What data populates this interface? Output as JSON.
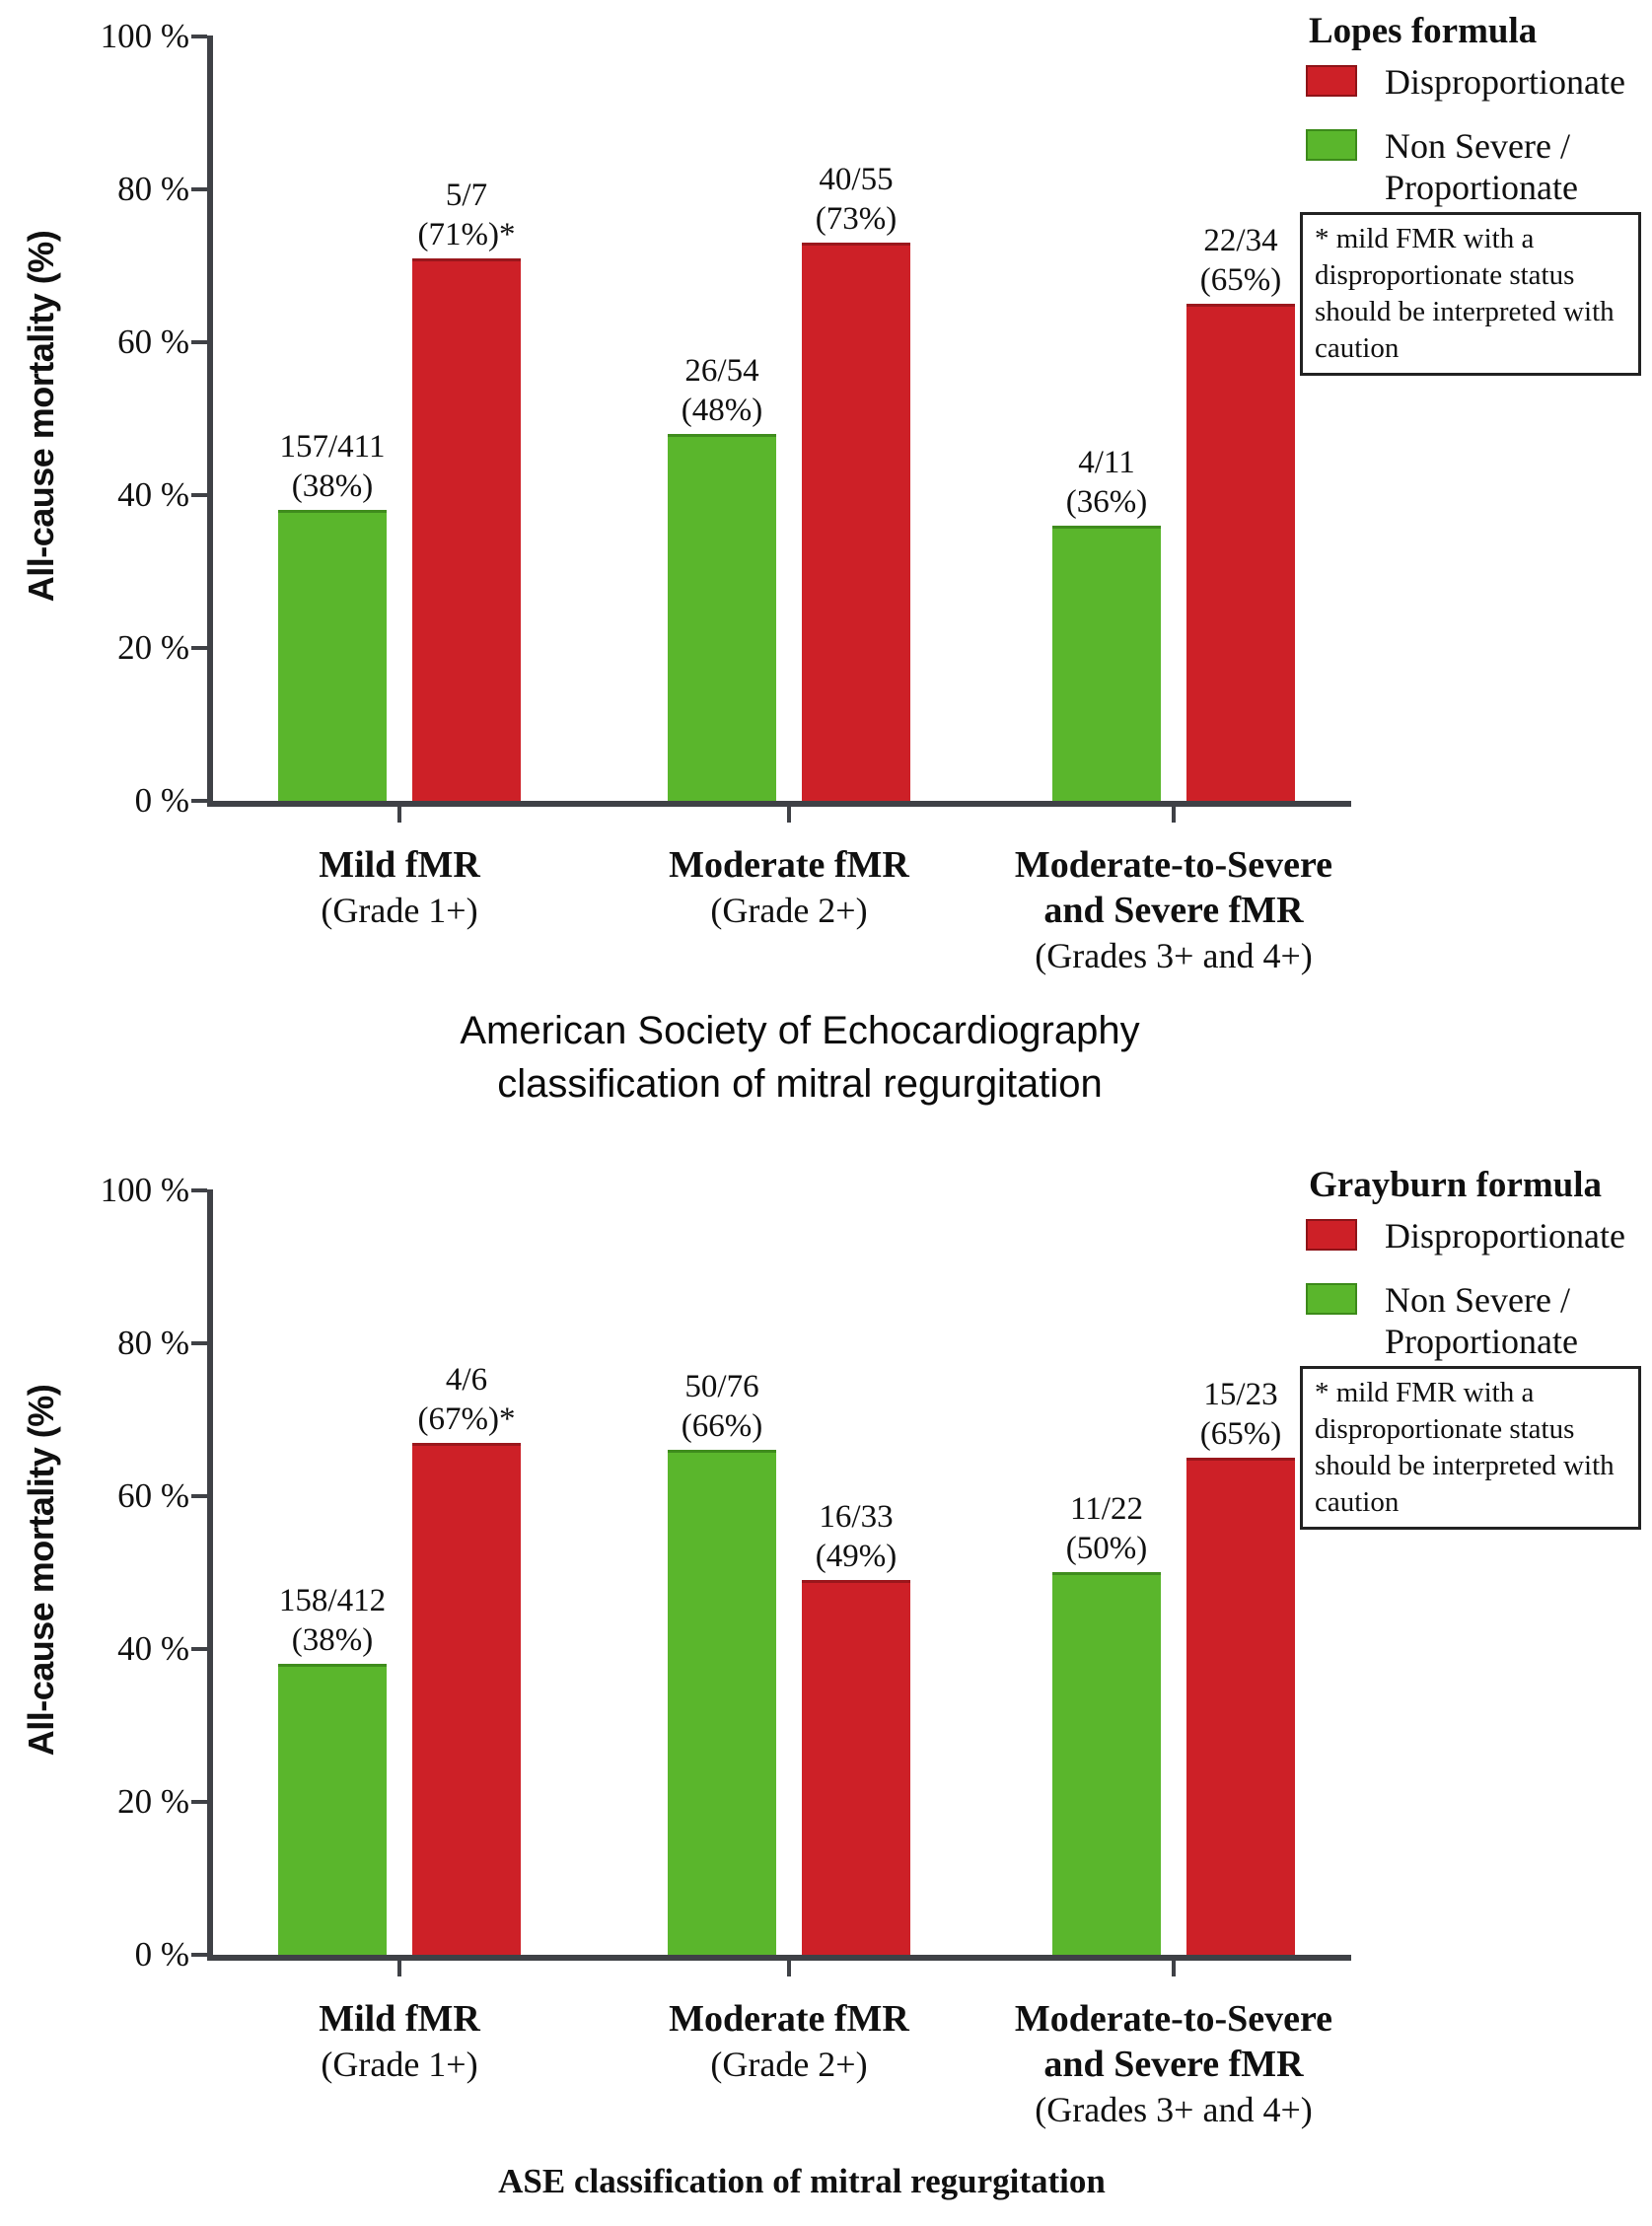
{
  "middle_title_lines": [
    "American Society of Echocardiography",
    "classification of mitral regurgitation"
  ],
  "footer": "ASE classification of mitral regurgitation",
  "chart_data": [
    {
      "type": "bar",
      "legend_title": "Lopes formula",
      "ylabel": "All-cause mortality (%)",
      "ylim": [
        0,
        100
      ],
      "yticks_pct": [
        100,
        80,
        60,
        40,
        20,
        0
      ],
      "ytick_suffix": " %",
      "grid": "off",
      "legend_position": "top-right",
      "legend": [
        {
          "name": "Disproportionate",
          "lines": [
            "Disproportionate"
          ],
          "color": "#cd2027",
          "edge_color": "#8e1318"
        },
        {
          "name": "Non Severe / Proportionate",
          "lines": [
            "Non Severe /",
            "Proportionate"
          ],
          "color": "#5ab62c",
          "edge_color": "#3c8a1a"
        }
      ],
      "note_lines": [
        "* mild FMR with a",
        "disproportionate status",
        "should be interpreted with",
        "caution"
      ],
      "categories": [
        {
          "title_lines": [
            "Mild fMR"
          ],
          "subtitle": "(Grade 1+)"
        },
        {
          "title_lines": [
            "Moderate fMR"
          ],
          "subtitle": "(Grade 2+)"
        },
        {
          "title_lines": [
            "Moderate-to-Severe",
            "and Severe fMR"
          ],
          "subtitle": "(Grades 3+ and 4+)"
        }
      ],
      "series": [
        {
          "name": "Non Severe / Proportionate",
          "color": "#5ab62c",
          "edge_color": "#3f8c1d",
          "values": [
            38,
            48,
            36
          ],
          "labels": [
            [
              "157/411",
              "(38%)"
            ],
            [
              "26/54",
              "(48%)"
            ],
            [
              "4/11",
              "(36%)"
            ]
          ]
        },
        {
          "name": "Disproportionate",
          "color": "#cd2027",
          "edge_color": "#9a171c",
          "values": [
            71,
            73,
            65
          ],
          "labels": [
            [
              "5/7",
              "(71%)*"
            ],
            [
              "40/55",
              "(73%)"
            ],
            [
              "22/34",
              "(65%)"
            ]
          ]
        }
      ]
    },
    {
      "type": "bar",
      "legend_title": "Grayburn formula",
      "ylabel": "All-cause mortality (%)",
      "ylim": [
        0,
        100
      ],
      "yticks_pct": [
        100,
        80,
        60,
        40,
        20,
        0
      ],
      "ytick_suffix": " %",
      "grid": "off",
      "legend_position": "top-right",
      "legend": [
        {
          "name": "Disproportionate",
          "lines": [
            "Disproportionate"
          ],
          "color": "#cd2027",
          "edge_color": "#8e1318"
        },
        {
          "name": "Non Severe / Proportionate",
          "lines": [
            "Non Severe /",
            "Proportionate"
          ],
          "color": "#5ab62c",
          "edge_color": "#3c8a1a"
        }
      ],
      "note_lines": [
        "* mild FMR with a",
        "disproportionate status",
        "should be interpreted with",
        "caution"
      ],
      "categories": [
        {
          "title_lines": [
            "Mild fMR"
          ],
          "subtitle": "(Grade 1+)"
        },
        {
          "title_lines": [
            "Moderate fMR"
          ],
          "subtitle": "(Grade 2+)"
        },
        {
          "title_lines": [
            "Moderate-to-Severe",
            "and Severe fMR"
          ],
          "subtitle": "(Grades 3+ and 4+)"
        }
      ],
      "series": [
        {
          "name": "Non Severe / Proportionate",
          "color": "#5ab62c",
          "edge_color": "#3f8c1d",
          "values": [
            38,
            66,
            50
          ],
          "labels": [
            [
              "158/412",
              "(38%)"
            ],
            [
              "50/76",
              "(66%)"
            ],
            [
              "11/22",
              "(50%)"
            ]
          ]
        },
        {
          "name": "Disproportionate",
          "color": "#cd2027",
          "edge_color": "#9a171c",
          "values": [
            67,
            49,
            65
          ],
          "labels": [
            [
              "4/6",
              "(67%)*"
            ],
            [
              "16/33",
              "(49%)"
            ],
            [
              "15/23",
              "(65%)"
            ]
          ]
        }
      ]
    }
  ]
}
